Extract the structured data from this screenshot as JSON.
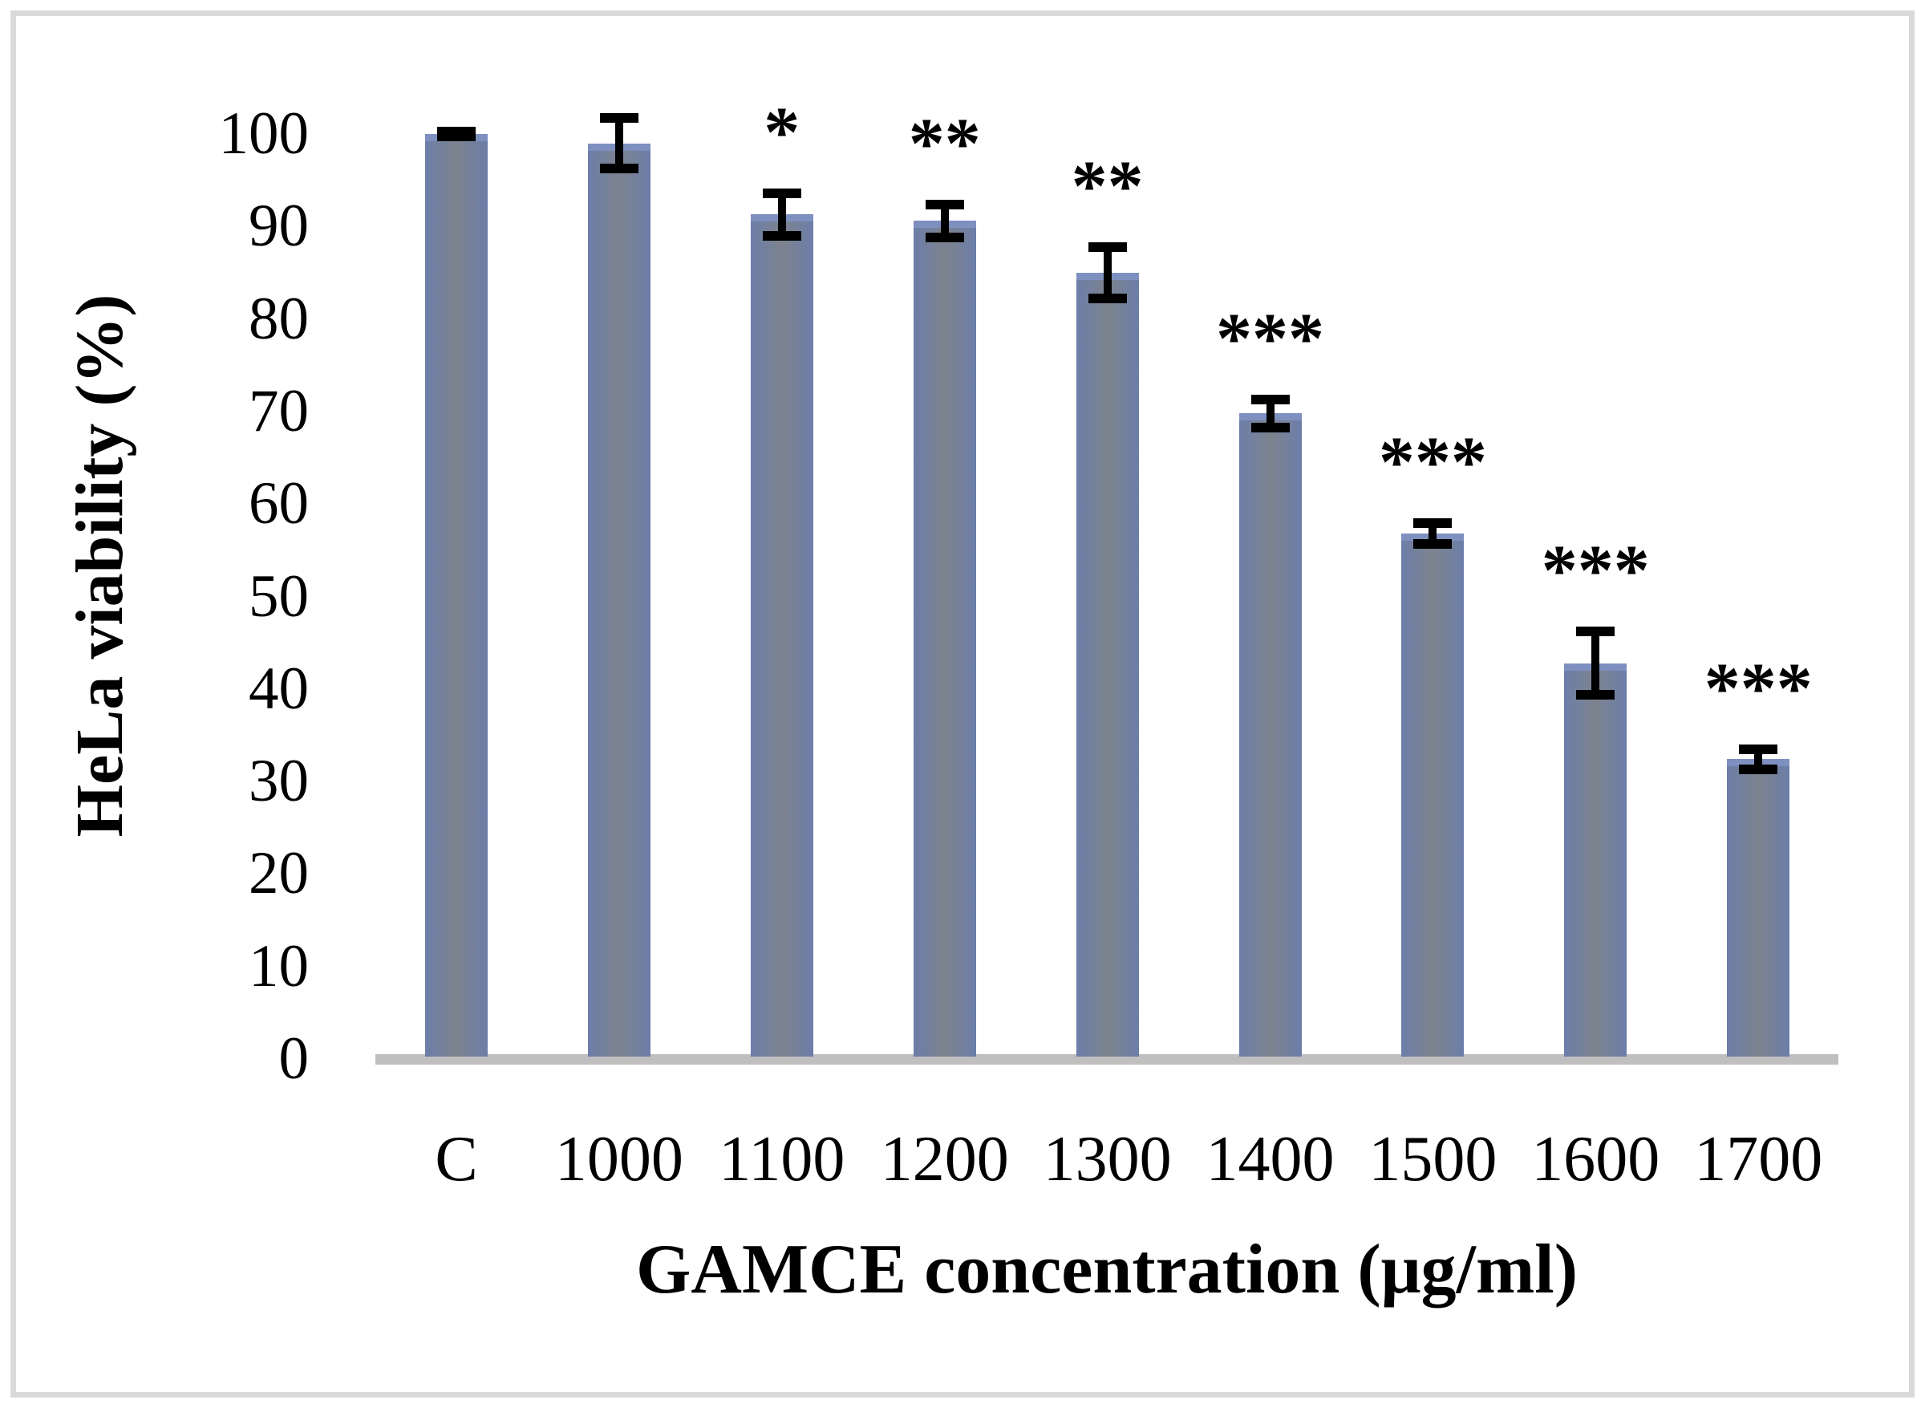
{
  "figure": {
    "background": "#FFFFFF",
    "border_color": "#D9D9D9"
  },
  "chart_data": {
    "type": "bar",
    "title": "",
    "xlabel": "GAMCE concentration (μg/ml)",
    "ylabel": "HeLa viability (%)",
    "categories": [
      "C",
      "1000",
      "1100",
      "1200",
      "1300",
      "1400",
      "1500",
      "1600",
      "1700"
    ],
    "values": [
      100,
      99,
      91.3,
      90.6,
      85,
      69.8,
      56.8,
      42.8,
      32.4
    ],
    "errors": [
      0.3,
      2.7,
      2.3,
      1.8,
      2.8,
      1.5,
      1.1,
      3.4,
      1.1
    ],
    "significance": [
      "",
      "",
      "*",
      "**",
      "**",
      "***",
      "***",
      "***",
      "***"
    ],
    "ylim": [
      0,
      100
    ],
    "yticks": [
      0,
      10,
      20,
      30,
      40,
      50,
      60,
      70,
      80,
      90,
      100
    ],
    "grid": false,
    "legend": null,
    "bar_color_edge": "#6C7EA9",
    "bar_color_center": "#7D838E",
    "bar_color_top_band": "#7E90C0",
    "axis_line_color": "#BFBFBF",
    "error_bar_color": "#000000"
  }
}
